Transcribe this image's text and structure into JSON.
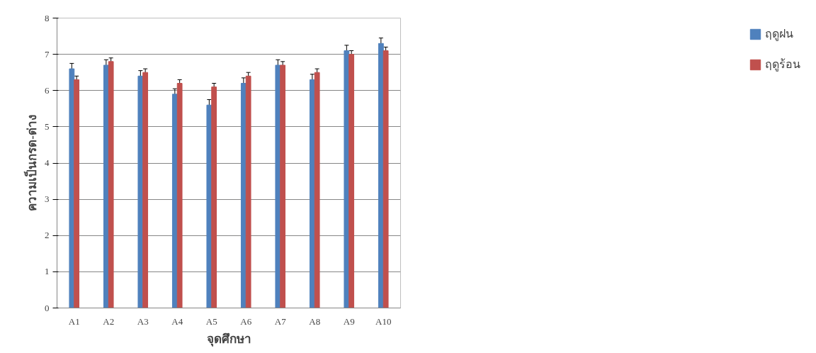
{
  "chart_data": {
    "type": "bar",
    "xlabel": "จุดศึกษา",
    "ylabel": "ความเป็นกรด-ด่าง",
    "categories": [
      "A1",
      "A2",
      "A3",
      "A4",
      "A5",
      "A6",
      "A7",
      "A8",
      "A9",
      "A10"
    ],
    "series": [
      {
        "name": "ฤดูฝน",
        "color": "#4f81bd",
        "values": [
          6.6,
          6.7,
          6.4,
          5.9,
          5.6,
          6.2,
          6.7,
          6.3,
          7.1,
          7.3
        ],
        "errors": [
          0.15,
          0.15,
          0.15,
          0.15,
          0.15,
          0.15,
          0.15,
          0.15,
          0.15,
          0.15
        ]
      },
      {
        "name": "ฤดูร้อน",
        "color": "#c0504d",
        "values": [
          6.3,
          6.8,
          6.5,
          6.2,
          6.1,
          6.4,
          6.7,
          6.5,
          7.0,
          7.1
        ],
        "errors": [
          0.1,
          0.1,
          0.1,
          0.1,
          0.1,
          0.1,
          0.1,
          0.1,
          0.1,
          0.1
        ]
      }
    ],
    "ylim": [
      0,
      8
    ],
    "yticks": [
      0,
      1,
      2,
      3,
      4,
      5,
      6,
      7,
      8
    ],
    "grid": "y",
    "legend": "right"
  }
}
